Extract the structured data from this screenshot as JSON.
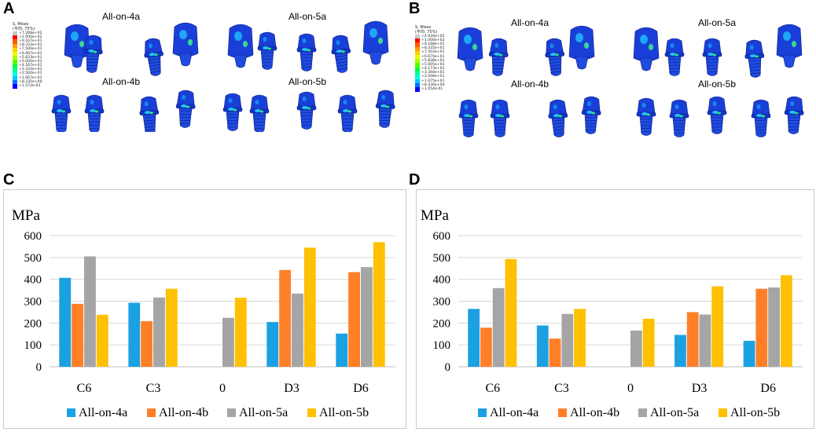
{
  "panels": {
    "A": {
      "letter": "A",
      "titles": [
        "All-on-4a",
        "All-on-5a",
        "All-on-4b",
        "All-on-5b"
      ],
      "legend": {
        "header": [
          "S, Mises",
          "(平均: 75%)"
        ],
        "values": [
          "+7.268e+02",
          "+1.000e+02",
          "+9.167e+01",
          "+8.333e+01",
          "+7.500e+01",
          "+6.667e+01",
          "+5.833e+01",
          "+5.000e+01",
          "+4.167e+01",
          "+3.333e+01",
          "+2.500e+01",
          "+1.667e+01",
          "+8.335e+00",
          "+1.572e-03"
        ]
      }
    },
    "B": {
      "letter": "B",
      "titles": [
        "All-on-4a",
        "All-on-5a",
        "All-on-4b",
        "All-on-5b"
      ],
      "legend": {
        "header": [
          "S, Mises",
          "(平均: 75%)"
        ],
        "values": [
          "+4.934e+02",
          "+1.000e+02",
          "+9.168e+01",
          "+8.335e+01",
          "+7.503e+01",
          "+6.670e+01",
          "+5.838e+01",
          "+5.005e+01",
          "+4.173e+01",
          "+3.340e+01",
          "+2.508e+01",
          "+1.675e+01",
          "+8.430e+00",
          "+1.054e-01"
        ]
      }
    },
    "C": {
      "letter": "C"
    },
    "D": {
      "letter": "D"
    }
  },
  "legend_colors": [
    "#c8c8c8",
    "#ff0000",
    "#ff5a00",
    "#ff9a00",
    "#ffd000",
    "#e8ff00",
    "#a8ff00",
    "#55ff00",
    "#00ff40",
    "#00ff9a",
    "#00ffe0",
    "#00c8ff",
    "#0070ff",
    "#0000ff"
  ],
  "colors": {
    "s1": "#1ba1e2",
    "s2": "#ff7f27",
    "s3": "#a5a5a5",
    "s4": "#ffc000",
    "grid": "#d9d9d9"
  },
  "chart_data": [
    {
      "panel": "C",
      "type": "bar",
      "ylabel": "MPa",
      "ylim": [
        0,
        600
      ],
      "yticks": [
        "0",
        "100",
        "200",
        "300",
        "400",
        "500",
        "600"
      ],
      "categories": [
        "C6",
        "C3",
        "0",
        "D3",
        "D6"
      ],
      "series": [
        {
          "name": "All-on-4a",
          "values": [
            407,
            293,
            0,
            205,
            152
          ]
        },
        {
          "name": "All-on-4b",
          "values": [
            288,
            209,
            0,
            443,
            433
          ]
        },
        {
          "name": "All-on-5a",
          "values": [
            505,
            317,
            224,
            335,
            456
          ]
        },
        {
          "name": "All-on-5b",
          "values": [
            238,
            357,
            316,
            545,
            570
          ]
        }
      ]
    },
    {
      "panel": "D",
      "type": "bar",
      "ylabel": "MPa",
      "ylim": [
        0,
        600
      ],
      "yticks": [
        "0",
        "100",
        "200",
        "300",
        "400",
        "500",
        "600"
      ],
      "categories": [
        "C6",
        "C3",
        "0",
        "D3",
        "D6"
      ],
      "series": [
        {
          "name": "All-on-4a",
          "values": [
            265,
            189,
            0,
            146,
            119
          ]
        },
        {
          "name": "All-on-4b",
          "values": [
            179,
            129,
            0,
            250,
            357
          ]
        },
        {
          "name": "All-on-5a",
          "values": [
            360,
            242,
            166,
            239,
            363
          ]
        },
        {
          "name": "All-on-5b",
          "values": [
            493,
            265,
            220,
            368,
            419
          ]
        }
      ]
    }
  ]
}
